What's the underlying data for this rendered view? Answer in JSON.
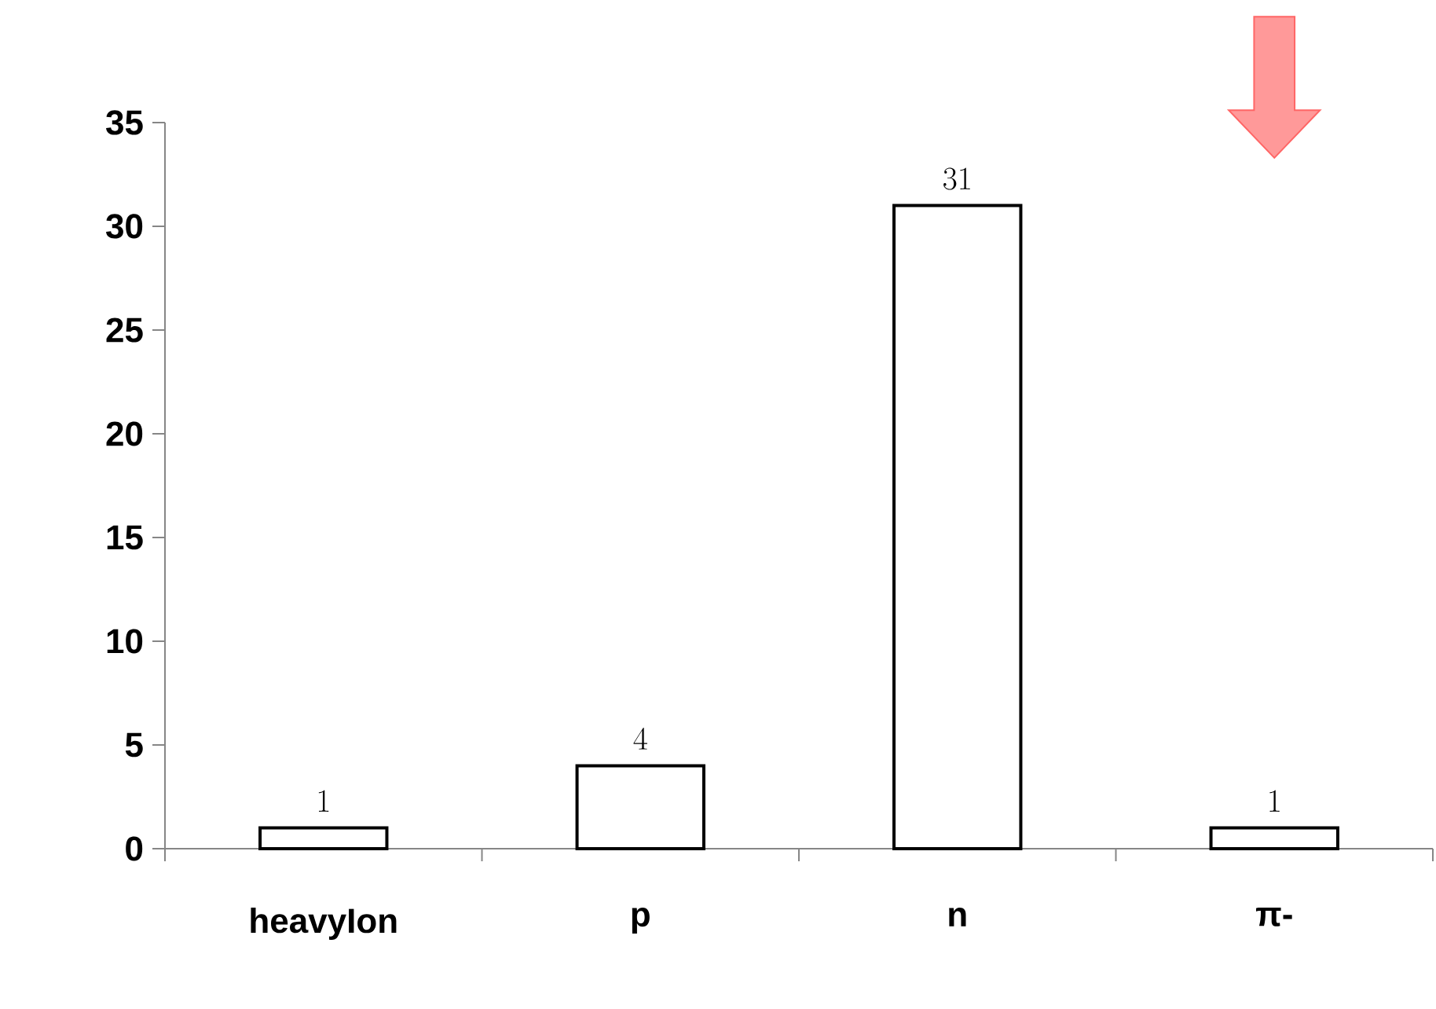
{
  "chart_data": {
    "type": "bar",
    "categories": [
      "heavyIon",
      "p",
      "n",
      "π-"
    ],
    "values": [
      1,
      4,
      31,
      1
    ],
    "color": "#ffffff",
    "ylim": [
      0,
      35
    ],
    "yticks": [
      0,
      5,
      10,
      15,
      20,
      25,
      30,
      35
    ],
    "grid": false,
    "data_labels": true
  }
}
